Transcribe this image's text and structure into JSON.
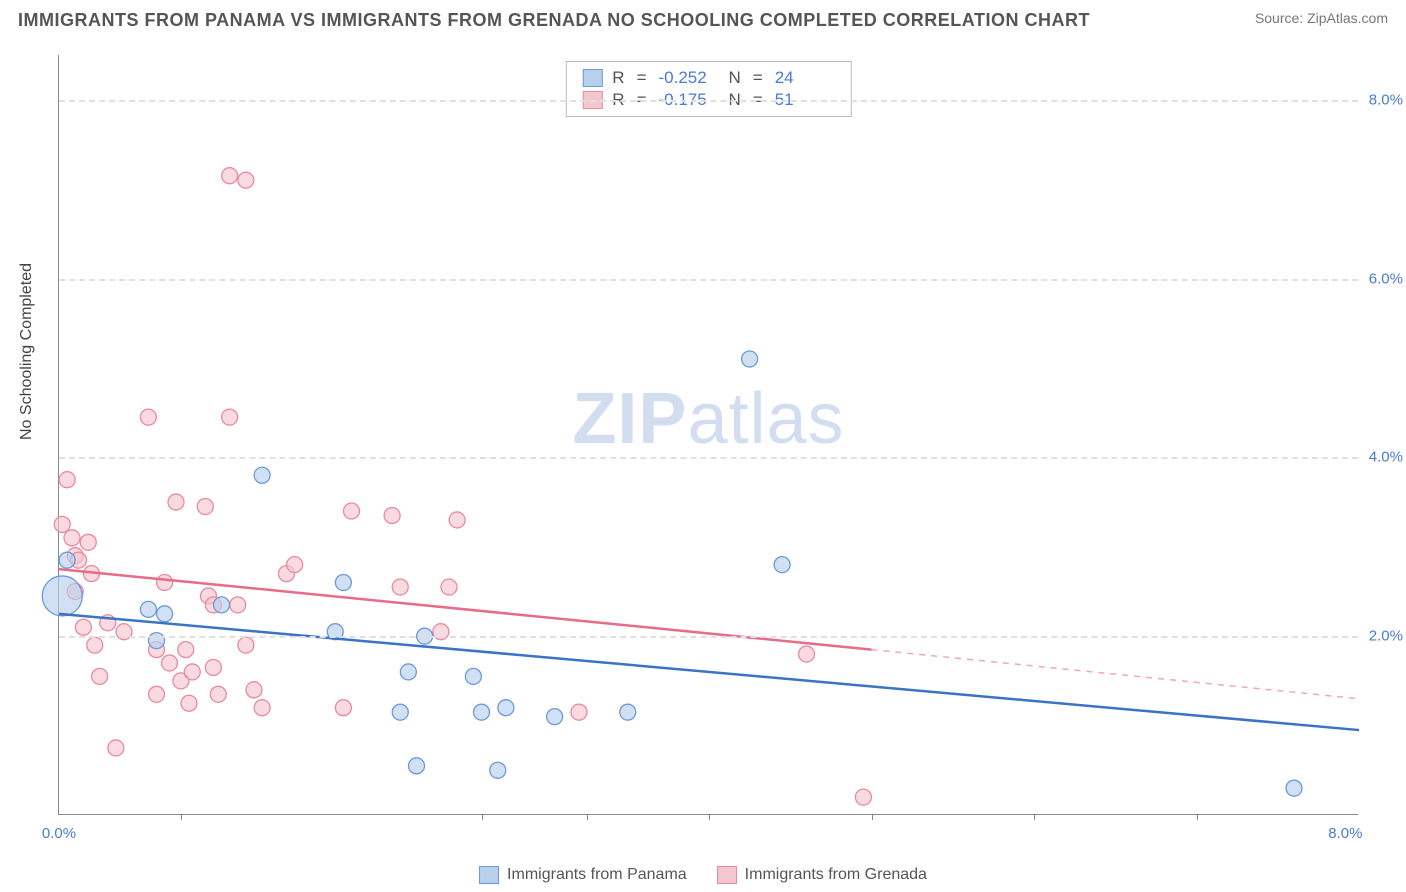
{
  "header": {
    "title": "IMMIGRANTS FROM PANAMA VS IMMIGRANTS FROM GRENADA NO SCHOOLING COMPLETED CORRELATION CHART",
    "source": "Source: ZipAtlas.com"
  },
  "watermark": {
    "zip": "ZIP",
    "atlas": "atlas"
  },
  "yaxis": {
    "label": "No Schooling Completed",
    "min": 0,
    "max": 8.5,
    "ticks": [
      2.0,
      4.0,
      6.0,
      8.0
    ],
    "tick_format": "pct"
  },
  "xaxis": {
    "min": 0,
    "max": 8.0,
    "ticks_major": [
      0.0,
      8.0
    ],
    "ticks_minor": [
      0.75,
      2.6,
      3.25,
      4.0,
      5.0,
      6.0,
      7.0
    ],
    "tick_format": "pct"
  },
  "legend_top": {
    "rows": [
      {
        "series": "panama",
        "r_label": "R",
        "r_value": "-0.252",
        "n_label": "N",
        "n_value": "24"
      },
      {
        "series": "grenada",
        "r_label": "R",
        "r_value": "-0.175",
        "n_label": "N",
        "n_value": "51"
      }
    ]
  },
  "legend_bottom": {
    "items": [
      {
        "series": "panama",
        "label": "Immigrants from Panama"
      },
      {
        "series": "grenada",
        "label": "Immigrants from Grenada"
      }
    ]
  },
  "series": {
    "panama": {
      "fill": "#b9d0ec",
      "stroke": "#6a9bd8",
      "line_stroke": "#3b74c4",
      "marker_r": 8,
      "line_width": 2.5,
      "trend": {
        "solid": [
          [
            0.0,
            2.25
          ],
          [
            8.0,
            0.95
          ]
        ]
      },
      "points": [
        [
          0.02,
          2.45,
          20
        ],
        [
          0.05,
          2.85,
          8
        ],
        [
          0.55,
          2.3,
          8
        ],
        [
          0.6,
          1.95,
          8
        ],
        [
          0.65,
          2.25,
          8
        ],
        [
          1.0,
          2.35,
          8
        ],
        [
          1.25,
          3.8,
          8
        ],
        [
          1.7,
          2.05,
          8
        ],
        [
          1.75,
          2.6,
          8
        ],
        [
          2.1,
          1.15,
          8
        ],
        [
          2.15,
          1.6,
          8
        ],
        [
          2.2,
          0.55,
          8
        ],
        [
          2.25,
          2.0,
          8
        ],
        [
          2.55,
          1.55,
          8
        ],
        [
          2.6,
          1.15,
          8
        ],
        [
          2.7,
          0.5,
          8
        ],
        [
          2.75,
          1.2,
          8
        ],
        [
          3.05,
          1.1,
          8
        ],
        [
          3.5,
          1.15,
          8
        ],
        [
          4.25,
          5.1,
          8
        ],
        [
          4.45,
          2.8,
          8
        ],
        [
          7.6,
          0.3,
          8
        ]
      ]
    },
    "grenada": {
      "fill": "#f4c6d0",
      "stroke": "#e88aa0",
      "line_stroke": "#e86b87",
      "marker_r": 8,
      "line_width": 2.5,
      "trend": {
        "solid": [
          [
            0.0,
            2.75
          ],
          [
            5.0,
            1.85
          ]
        ],
        "dashed": [
          [
            5.0,
            1.85
          ],
          [
            8.0,
            1.3
          ]
        ]
      },
      "points": [
        [
          0.02,
          3.25,
          8
        ],
        [
          0.05,
          3.75,
          8
        ],
        [
          0.08,
          3.1,
          8
        ],
        [
          0.1,
          2.9,
          8
        ],
        [
          0.1,
          2.5,
          8
        ],
        [
          0.12,
          2.85,
          8
        ],
        [
          0.15,
          2.1,
          8
        ],
        [
          0.18,
          3.05,
          8
        ],
        [
          0.2,
          2.7,
          8
        ],
        [
          0.22,
          1.9,
          8
        ],
        [
          0.25,
          1.55,
          8
        ],
        [
          0.3,
          2.15,
          8
        ],
        [
          0.35,
          0.75,
          8
        ],
        [
          0.4,
          2.05,
          8
        ],
        [
          0.55,
          4.45,
          8
        ],
        [
          0.6,
          1.85,
          8
        ],
        [
          0.6,
          1.35,
          8
        ],
        [
          0.65,
          2.6,
          8
        ],
        [
          0.68,
          1.7,
          8
        ],
        [
          0.72,
          3.5,
          8
        ],
        [
          0.75,
          1.5,
          8
        ],
        [
          0.78,
          1.85,
          8
        ],
        [
          0.8,
          1.25,
          8
        ],
        [
          0.82,
          1.6,
          8
        ],
        [
          0.9,
          3.45,
          8
        ],
        [
          0.92,
          2.45,
          8
        ],
        [
          0.95,
          2.35,
          8
        ],
        [
          0.95,
          1.65,
          8
        ],
        [
          0.98,
          1.35,
          8
        ],
        [
          1.05,
          4.45,
          8
        ],
        [
          1.05,
          7.15,
          8
        ],
        [
          1.15,
          7.1,
          8
        ],
        [
          1.1,
          2.35,
          8
        ],
        [
          1.15,
          1.9,
          8
        ],
        [
          1.2,
          1.4,
          8
        ],
        [
          1.25,
          1.2,
          8
        ],
        [
          1.4,
          2.7,
          8
        ],
        [
          1.45,
          2.8,
          8
        ],
        [
          1.75,
          1.2,
          8
        ],
        [
          1.8,
          3.4,
          8
        ],
        [
          2.05,
          3.35,
          8
        ],
        [
          2.1,
          2.55,
          8
        ],
        [
          2.35,
          2.05,
          8
        ],
        [
          2.4,
          2.55,
          8
        ],
        [
          2.45,
          3.3,
          8
        ],
        [
          3.2,
          1.15,
          8
        ],
        [
          4.6,
          1.8,
          8
        ],
        [
          4.95,
          0.2,
          8
        ]
      ]
    }
  },
  "colors": {
    "title": "#555555",
    "source": "#777777",
    "axis_text": "#4a7bd0",
    "grid": "#e0e0e0"
  }
}
